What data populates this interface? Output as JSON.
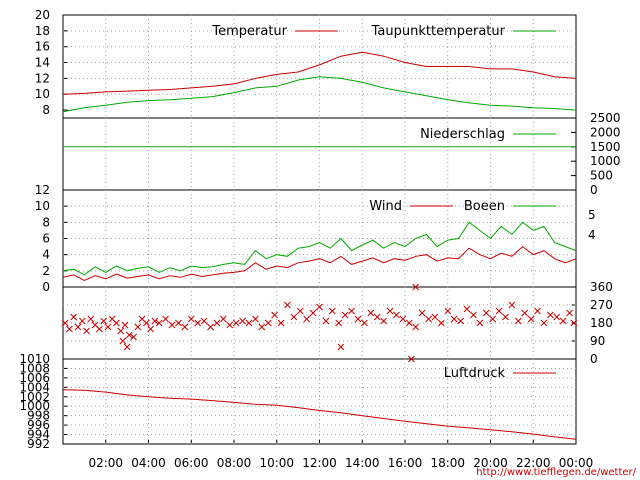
{
  "colors": {
    "red": "#cc0000",
    "green": "#00aa00",
    "grid": "#a0a0a0"
  },
  "credit": "http://www.tiefflegen.de/wetter/",
  "x_tick_labels": [
    "02:00",
    "04:00",
    "06:00",
    "08:00",
    "10:00",
    "12:00",
    "14:00",
    "16:00",
    "18:00",
    "20:00",
    "22:00",
    "00:00"
  ],
  "chart_data": [
    {
      "type": "line",
      "grid": true,
      "x_hours": [
        0,
        1,
        2,
        3,
        4,
        5,
        6,
        7,
        8,
        9,
        10,
        11,
        12,
        13,
        14,
        15,
        16,
        17,
        18,
        19,
        20,
        21,
        22,
        23,
        24
      ],
      "ylim": [
        7,
        20
      ],
      "y_ticks": [
        "8",
        "10",
        "12",
        "14",
        "16",
        "18",
        "20"
      ],
      "series": [
        {
          "name": "Temperatur",
          "color": "red",
          "values": [
            10.0,
            10.1,
            10.3,
            10.4,
            10.5,
            10.6,
            10.8,
            11.0,
            11.3,
            12.0,
            12.5,
            12.8,
            13.7,
            14.8,
            15.3,
            14.8,
            14.0,
            13.5,
            13.5,
            13.5,
            13.2,
            13.2,
            12.8,
            12.2,
            12.0
          ]
        },
        {
          "name": "Taupunkttemperatur",
          "color": "green",
          "values": [
            7.8,
            8.3,
            8.6,
            9.0,
            9.2,
            9.3,
            9.5,
            9.7,
            10.2,
            10.8,
            11.0,
            11.8,
            12.2,
            12.0,
            11.5,
            10.8,
            10.3,
            9.8,
            9.3,
            8.9,
            8.6,
            8.5,
            8.3,
            8.2,
            8.0
          ]
        }
      ]
    },
    {
      "type": "line",
      "grid": false,
      "ylim": [
        0,
        2500
      ],
      "y_ticks": [
        "0",
        "500",
        "1000",
        "1500",
        "2000",
        "2500"
      ],
      "series": [
        {
          "name": "Niederschlag",
          "color": "green",
          "values": [
            1500,
            1500
          ]
        }
      ]
    },
    {
      "type": "line",
      "grid": true,
      "x_hours": [
        0,
        0.5,
        1,
        1.5,
        2,
        2.5,
        3,
        3.5,
        4,
        4.5,
        5,
        5.5,
        6,
        6.5,
        7,
        7.5,
        8,
        8.5,
        9,
        9.5,
        10,
        10.5,
        11,
        11.5,
        12,
        12.5,
        13,
        13.5,
        14,
        14.5,
        15,
        15.5,
        16,
        16.5,
        17,
        17.5,
        18,
        18.5,
        19,
        19.5,
        20,
        20.5,
        21,
        21.5,
        22,
        22.5,
        23,
        23.5,
        24
      ],
      "ylim": [
        0,
        12
      ],
      "y_ticks": [
        "0",
        "2",
        "4",
        "6",
        "8",
        "10",
        "12"
      ],
      "right_ticks": [
        "4",
        "5"
      ],
      "series": [
        {
          "name": "Wind",
          "color": "red",
          "values": [
            1.2,
            1.5,
            0.8,
            1.4,
            1.0,
            1.6,
            1.1,
            1.3,
            1.5,
            1.0,
            1.4,
            1.2,
            1.6,
            1.3,
            1.5,
            1.7,
            1.8,
            2.0,
            3.0,
            2.2,
            2.6,
            2.4,
            3.0,
            3.2,
            3.5,
            3.0,
            3.8,
            2.8,
            3.2,
            3.6,
            3.0,
            3.5,
            3.3,
            3.8,
            4.0,
            3.2,
            3.6,
            3.5,
            4.8,
            4.0,
            3.5,
            4.2,
            3.8,
            5.0,
            4.0,
            4.5,
            3.5,
            3.0,
            3.5
          ]
        },
        {
          "name": "Boeen",
          "color": "green",
          "values": [
            2.0,
            2.2,
            1.5,
            2.5,
            1.8,
            2.6,
            2.0,
            2.3,
            2.5,
            1.8,
            2.4,
            2.0,
            2.6,
            2.4,
            2.5,
            2.8,
            3.0,
            2.8,
            4.5,
            3.5,
            4.0,
            3.8,
            4.8,
            5.0,
            5.5,
            4.8,
            6.0,
            4.5,
            5.2,
            5.8,
            4.8,
            5.5,
            5.0,
            6.0,
            6.5,
            5.0,
            5.8,
            6.0,
            8.0,
            7.0,
            6.0,
            7.5,
            6.5,
            8.0,
            7.0,
            7.5,
            5.5,
            5.0,
            4.5
          ]
        }
      ]
    },
    {
      "type": "scatter",
      "grid": true,
      "ylim": [
        0,
        360
      ],
      "y_ticks": [
        "0",
        "90",
        "180",
        "270",
        "360"
      ],
      "series": [
        {
          "name": "",
          "color": "red",
          "x_hours": [
            0.1,
            0.3,
            0.5,
            0.7,
            0.9,
            1.1,
            1.3,
            1.5,
            1.7,
            1.9,
            2.1,
            2.3,
            2.5,
            2.7,
            2.9,
            3.1,
            3.3,
            3.5,
            3.7,
            3.9,
            4.1,
            4.3,
            4.5,
            4.8,
            5.1,
            5.4,
            5.7,
            6.0,
            6.3,
            6.6,
            6.9,
            7.2,
            7.5,
            7.8,
            8.1,
            8.4,
            8.7,
            9.0,
            9.3,
            9.6,
            9.9,
            10.2,
            10.5,
            10.8,
            11.1,
            11.4,
            11.7,
            12.0,
            12.3,
            12.6,
            12.9,
            13.2,
            13.5,
            13.8,
            14.1,
            14.4,
            14.7,
            15.0,
            15.3,
            15.6,
            15.9,
            16.2,
            16.5,
            16.8,
            17.1,
            17.4,
            17.7,
            18.0,
            18.3,
            18.6,
            18.9,
            19.2,
            19.5,
            19.8,
            20.1,
            20.4,
            20.7,
            21.0,
            21.3,
            21.6,
            21.9,
            22.2,
            22.5,
            22.8,
            23.1,
            23.4,
            23.7,
            23.9,
            16.3,
            16.5,
            2.8,
            3.0,
            13.0
          ],
          "values": [
            180,
            150,
            210,
            160,
            190,
            140,
            200,
            170,
            150,
            190,
            160,
            200,
            180,
            140,
            170,
            120,
            110,
            160,
            200,
            180,
            150,
            190,
            180,
            200,
            170,
            180,
            160,
            200,
            180,
            190,
            160,
            180,
            200,
            170,
            180,
            190,
            180,
            200,
            160,
            180,
            220,
            180,
            270,
            210,
            240,
            200,
            230,
            260,
            190,
            240,
            180,
            220,
            240,
            200,
            180,
            230,
            210,
            190,
            240,
            220,
            200,
            180,
            160,
            230,
            200,
            210,
            180,
            240,
            200,
            190,
            250,
            220,
            180,
            230,
            200,
            240,
            210,
            270,
            190,
            230,
            200,
            240,
            180,
            220,
            210,
            190,
            230,
            180,
            0,
            360,
            90,
            60,
            60
          ]
        }
      ]
    },
    {
      "type": "line",
      "grid": true,
      "x_hours": [
        0,
        1,
        2,
        3,
        4,
        5,
        6,
        7,
        8,
        9,
        10,
        11,
        12,
        13,
        14,
        15,
        16,
        17,
        18,
        19,
        20,
        21,
        22,
        23,
        24
      ],
      "ylim": [
        992,
        1010
      ],
      "y_ticks": [
        "992",
        "994",
        "996",
        "998",
        "1000",
        "1002",
        "1004",
        "1006",
        "1008",
        "1010"
      ],
      "series": [
        {
          "name": "Luftdruck",
          "color": "red",
          "values": [
            1003.5,
            1003.4,
            1003.0,
            1002.4,
            1002.0,
            1001.7,
            1001.5,
            1001.2,
            1000.8,
            1000.4,
            1000.2,
            999.7,
            999.1,
            998.6,
            998.0,
            997.4,
            996.8,
            996.3,
            995.8,
            995.4,
            995.0,
            994.6,
            994.1,
            993.5,
            993.0
          ]
        }
      ]
    }
  ]
}
